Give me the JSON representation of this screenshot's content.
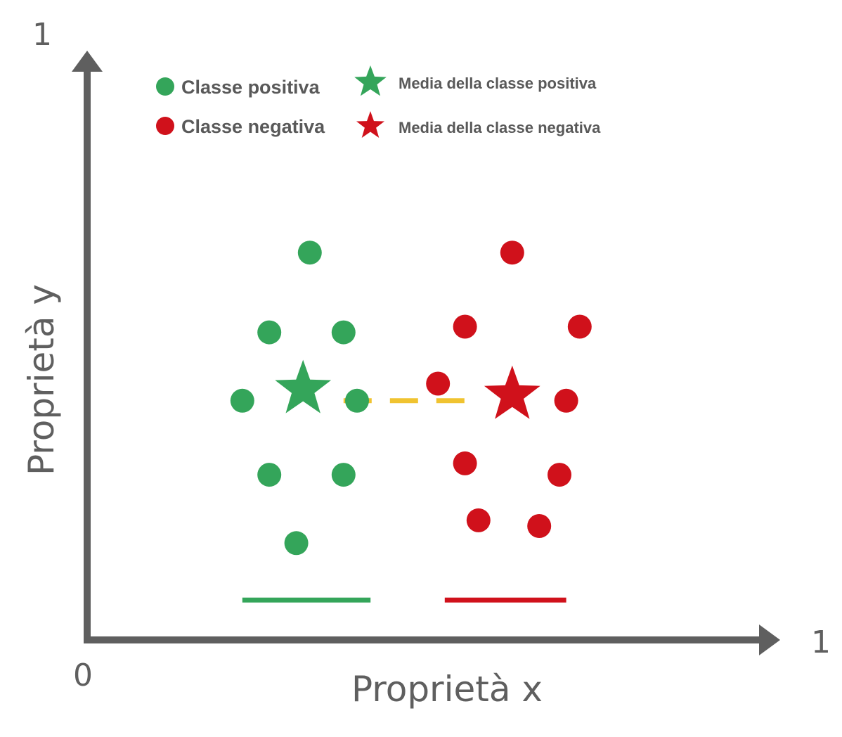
{
  "chart_data": {
    "type": "scatter",
    "title": "",
    "xlabel": "Proprietà x",
    "ylabel": "Proprietà y",
    "xlim": [
      0,
      1
    ],
    "ylim": [
      0,
      1
    ],
    "x_tick_labels": {
      "min": "0",
      "max": "1"
    },
    "y_tick_labels": {
      "max": "1"
    },
    "grid": false,
    "legend_position": "top-left",
    "colors": {
      "positive": "#34a55a",
      "negative": "#d0111b",
      "mean_line": "#f0c330",
      "axis": "#5f5f5f"
    },
    "legend": [
      {
        "label": "Classe positiva",
        "marker": "circle",
        "color": "#34a55a"
      },
      {
        "label": "Classe negativa",
        "marker": "circle",
        "color": "#d0111b"
      },
      {
        "label": "Media della classe positiva",
        "marker": "star",
        "color": "#34a55a"
      },
      {
        "label": "Media della classe negativa",
        "marker": "star",
        "color": "#d0111b"
      }
    ],
    "series": [
      {
        "name": "Classe positiva",
        "marker": "circle",
        "color": "#34a55a",
        "points": [
          [
            0.33,
            0.68
          ],
          [
            0.27,
            0.54
          ],
          [
            0.38,
            0.54
          ],
          [
            0.23,
            0.42
          ],
          [
            0.4,
            0.42
          ],
          [
            0.27,
            0.29
          ],
          [
            0.38,
            0.29
          ],
          [
            0.31,
            0.17
          ]
        ]
      },
      {
        "name": "Classe negativa",
        "marker": "circle",
        "color": "#d0111b",
        "points": [
          [
            0.63,
            0.68
          ],
          [
            0.56,
            0.55
          ],
          [
            0.73,
            0.55
          ],
          [
            0.52,
            0.45
          ],
          [
            0.71,
            0.42
          ],
          [
            0.56,
            0.31
          ],
          [
            0.7,
            0.29
          ],
          [
            0.58,
            0.21
          ],
          [
            0.67,
            0.2
          ]
        ]
      },
      {
        "name": "Media della classe positiva",
        "marker": "star",
        "color": "#34a55a",
        "points": [
          [
            0.32,
            0.44
          ]
        ]
      },
      {
        "name": "Media della classe negativa",
        "marker": "star",
        "color": "#d0111b",
        "points": [
          [
            0.63,
            0.43
          ]
        ]
      }
    ],
    "annotations": [
      {
        "type": "dashed-line",
        "color": "#f0c330",
        "from": [
          0.38,
          0.42
        ],
        "to": [
          0.57,
          0.42
        ]
      },
      {
        "type": "range-line",
        "color": "#34a55a",
        "from": [
          0.23,
          0.07
        ],
        "to": [
          0.42,
          0.07
        ]
      },
      {
        "type": "range-line",
        "color": "#d0111b",
        "from": [
          0.53,
          0.07
        ],
        "to": [
          0.71,
          0.07
        ]
      }
    ]
  }
}
